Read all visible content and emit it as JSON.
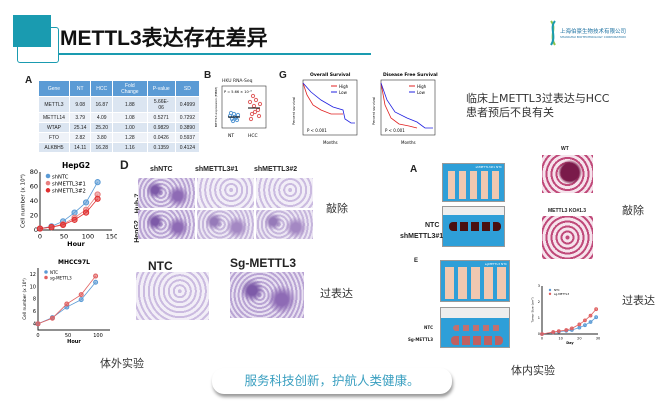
{
  "header": {
    "title": "METTL3表达存在差异",
    "logo_text": "上海伯豪生物技术有限公司",
    "logo_subtext": "SHANGHAI BIOTECHNOLOGY CORPORATION",
    "accent": "#1a9bb0"
  },
  "panelA": {
    "label": "A",
    "columns": [
      "Gene",
      "NT",
      "HCC",
      "Fold Change",
      "P-value",
      "SD"
    ],
    "rows": [
      [
        "METTL3",
        "9.08",
        "16.87",
        "1.88",
        "5.66E-06",
        "0.4999"
      ],
      [
        "METTL14",
        "3.79",
        "4.09",
        "1.08",
        "0.5271",
        "0.7292"
      ],
      [
        "WTAP",
        "25.14",
        "25.20",
        "1.00",
        "0.9829",
        "0.3890"
      ],
      [
        "FTO",
        "2.82",
        "3.80",
        "1.28",
        "0.0426",
        "0.5937"
      ],
      [
        "ALKBH5",
        "14.11",
        "16.28",
        "1.16",
        "0.1359",
        "0.4124"
      ]
    ]
  },
  "panelB": {
    "label": "B",
    "title": "HKU RNA-Seq",
    "pvalue": "P = 5.66 × 10⁻⁶",
    "ylabel": "METTL3 expression (FPKM)",
    "groups": [
      "NT",
      "HCC"
    ]
  },
  "panelG": {
    "label": "G",
    "ylabel": "Percent survival",
    "xlabel": "Months",
    "pvalue": "P < 0.001",
    "legend": [
      "High",
      "Low"
    ],
    "charts": [
      {
        "title": "Overall Survival"
      },
      {
        "title": "Disease Free Survival"
      }
    ]
  },
  "clinical_note": "临床上METTL3过表达与HCC患者预后不良有关",
  "chart_data": [
    {
      "type": "line",
      "title": "HepG2",
      "xlabel": "Hour",
      "ylabel": "Cell number (x 10⁴)",
      "xlim": [
        0,
        150
      ],
      "ylim": [
        0,
        80
      ],
      "xticks": [
        "0",
        "50",
        "100",
        "150"
      ],
      "yticks": [
        "0",
        "20",
        "40",
        "60",
        "80"
      ],
      "x": [
        0,
        24,
        48,
        72,
        96,
        120
      ],
      "series": [
        {
          "name": "shNTC",
          "values": [
            2,
            5,
            12,
            24,
            38,
            66
          ],
          "color": "#5b9bd5"
        },
        {
          "name": "shMETTL3#1",
          "values": [
            2,
            4,
            8,
            17,
            28,
            49
          ],
          "color": "#e88080"
        },
        {
          "name": "shMETTL3#2",
          "values": [
            2,
            4,
            7,
            14,
            24,
            43
          ],
          "color": "#e03030"
        }
      ]
    },
    {
      "type": "line",
      "title": "MHCC97L",
      "xlabel": "Hour",
      "ylabel": "Cell number (x 10⁴)",
      "xlim": [
        0,
        120
      ],
      "ylim": [
        3,
        13
      ],
      "xticks": [
        "0",
        "50",
        "100"
      ],
      "yticks": [
        "4",
        "6",
        "8",
        "10",
        "12"
      ],
      "x": [
        0,
        24,
        48,
        72,
        96
      ],
      "series": [
        {
          "name": "NTC",
          "values": [
            4,
            5,
            6.7,
            7.9,
            10.7
          ],
          "color": "#5b9bd5"
        },
        {
          "name": "sg-METTL3",
          "values": [
            4,
            4.9,
            7.2,
            8.7,
            11.7
          ],
          "color": "#e06060"
        }
      ]
    },
    {
      "type": "line",
      "xlabel": "Day",
      "ylabel": "Tumor Size (cm³)",
      "xlim": [
        0,
        30
      ],
      "ylim": [
        0,
        3
      ],
      "xticks": [
        "0",
        "10",
        "20",
        "30"
      ],
      "yticks": [
        "0",
        "1",
        "2",
        "3"
      ],
      "x": [
        0,
        6,
        9,
        13,
        16,
        20,
        23,
        26,
        29
      ],
      "series": [
        {
          "name": "NTC",
          "values": [
            0,
            0.1,
            0.15,
            0.2,
            0.25,
            0.4,
            0.55,
            0.75,
            1.05
          ],
          "color": "#5b9bd5"
        },
        {
          "name": "sg-METTL3",
          "values": [
            0,
            0.12,
            0.18,
            0.25,
            0.35,
            0.6,
            0.85,
            1.15,
            1.55
          ],
          "color": "#e06060"
        }
      ]
    }
  ],
  "panelD": {
    "label": "D",
    "columns": [
      "shNTC",
      "shMETTL3#1",
      "shMETTL3#2"
    ],
    "rows": [
      "Huh-7",
      "HepG2"
    ]
  },
  "invitro_oe": {
    "labels": [
      "NTC",
      "Sg-METTL3"
    ]
  },
  "knockdown_label": "敲除",
  "overexpression_label": "过表达",
  "invitro_caption": "体外实验",
  "invivo_caption": "体内实验",
  "invivoA": {
    "label": "A",
    "legend": "shMETTL3#1  NTC",
    "rows": [
      "NTC",
      "shMETTL3#1"
    ],
    "lung_labels": [
      "WT",
      "METTL3 KO#1.3"
    ]
  },
  "invivoE": {
    "label": "E",
    "legend": "sgMETTL3  NTC",
    "rows": [
      "NTC",
      "Sg-METTL3"
    ]
  },
  "footer": {
    "slogan": "服务科技创新，护航人类健康。",
    "color": "#3a9fc0"
  }
}
